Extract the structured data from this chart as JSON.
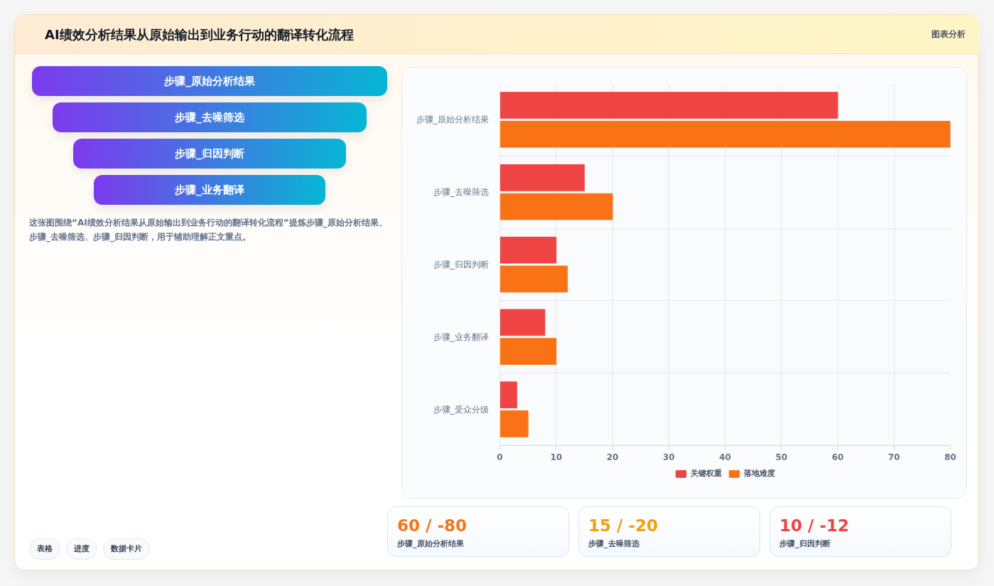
{
  "chart_data": [
    {
      "type": "other",
      "title": "AI绩效分析结果从原始输出到业务行动的翻译转化流程",
      "subtitle": "图表分析",
      "categories": [
        "步骤_原始分析结果",
        "步骤_去噪筛选",
        "步骤_归因判断",
        "步骤_业务翻译"
      ],
      "annotations": [
        "这张图围绕“AI绩效分析结果从原始输出到业务行动的翻译转化流程”提炼步骤_原始分析结果、步骤_去噪筛选、步骤_归因判断，用于辅助理解正文重点。",
        "表格",
        "进度",
        "数据卡片"
      ]
    },
    {
      "type": "bar",
      "orientation": "horizontal",
      "categories": [
        "步骤_原始分析结果",
        "步骤_去噪筛选",
        "步骤_归因判断",
        "步骤_业务翻译",
        "步骤_受众分级"
      ],
      "series": [
        {
          "name": "关键权重",
          "color": "#ef4444",
          "values": [
            60,
            15,
            10,
            8,
            3
          ]
        },
        {
          "name": "落地难度",
          "color": "#f97316",
          "values": [
            80,
            20,
            12,
            10,
            5
          ]
        }
      ],
      "xlim": [
        0,
        80
      ],
      "xticks": [
        0,
        10,
        20,
        30,
        40,
        50,
        60,
        70,
        80
      ],
      "grid": true,
      "legend": "bottom"
    },
    {
      "type": "other",
      "categories": [
        "步骤_原始分析结果",
        "步骤_去噪筛选",
        "步骤_归因判断"
      ],
      "value_labels": [
        "60 / -80",
        "15 / -20",
        "10 / -12"
      ]
    }
  ]
}
